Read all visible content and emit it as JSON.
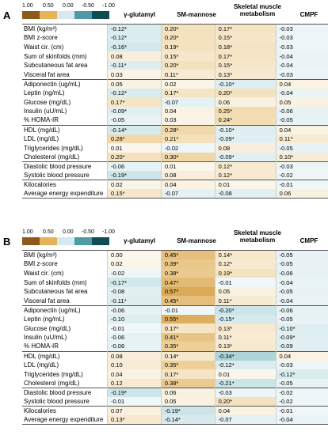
{
  "legend": {
    "ticks": [
      "1.00",
      "0.50",
      "0.00",
      "-0.50",
      "-1.00"
    ],
    "colors": [
      "#8c5a1c",
      "#e8b25a",
      "#d5eaf0",
      "#4e9aa6",
      "#0d4d53"
    ]
  },
  "columns": [
    "γ-glutamyl",
    "SM-mannose",
    "Skeletal muscle metabolism",
    "CMPF"
  ],
  "panels": [
    {
      "label": "A",
      "rows": [
        {
          "label": "BMI (kg/m²)",
          "values": [
            "-0.12*",
            "0.20*",
            "0.17*",
            "-0.03"
          ],
          "r": [
            -0.12,
            0.2,
            0.17,
            -0.03
          ],
          "group": 1
        },
        {
          "label": "BMI z-score",
          "values": [
            "-0.12*",
            "0.20*",
            "0.15*",
            "-0.03"
          ],
          "r": [
            -0.12,
            0.2,
            0.15,
            -0.03
          ],
          "group": 1
        },
        {
          "label": "Waist cir. (cm)",
          "values": [
            "-0.16*",
            "0.19*",
            "0.18*",
            "-0.03"
          ],
          "r": [
            -0.16,
            0.19,
            0.18,
            -0.03
          ],
          "group": 1
        },
        {
          "label": "Sum of skinfolds (mm)",
          "values": [
            "0.08",
            "0.15*",
            "0.17*",
            "-0.04"
          ],
          "r": [
            0.08,
            0.15,
            0.17,
            -0.04
          ],
          "group": 1
        },
        {
          "label": "Subcutaneous fat area",
          "values": [
            "-0.11*",
            "0.20*",
            "0.15*",
            "-0.04"
          ],
          "r": [
            -0.11,
            0.2,
            0.15,
            -0.04
          ],
          "group": 1
        },
        {
          "label": "Visceral fat area",
          "values": [
            "0.03",
            "0.11*",
            "0.13*",
            "-0.03"
          ],
          "r": [
            0.03,
            0.11,
            0.13,
            -0.03
          ],
          "group": 1
        },
        {
          "label": "Adiponectin (ug/mL)",
          "values": [
            "0.05",
            "0.02",
            "-0.10*",
            "0.04"
          ],
          "r": [
            0.05,
            0.02,
            -0.1,
            0.04
          ],
          "group": 2
        },
        {
          "label": "Leptin (ng/mL)",
          "values": [
            "-0.12*",
            "0.17*",
            "0.20*",
            "-0.04"
          ],
          "r": [
            -0.12,
            0.17,
            0.2,
            -0.04
          ],
          "group": 2
        },
        {
          "label": "Glucose (mg/dL)",
          "values": [
            "0.17*",
            "-0.07",
            "0.06",
            "0.05"
          ],
          "r": [
            0.17,
            -0.07,
            0.06,
            0.05
          ],
          "group": 2
        },
        {
          "label": "Insulin (uU/mL)",
          "values": [
            "-0.09*",
            "0.04",
            "0.25*",
            "-0.06"
          ],
          "r": [
            -0.09,
            0.04,
            0.25,
            -0.06
          ],
          "group": 2
        },
        {
          "label": "% HOMA-IR",
          "values": [
            "-0.05",
            "0.03",
            "0.24*",
            "-0.05"
          ],
          "r": [
            -0.05,
            0.03,
            0.24,
            -0.05
          ],
          "group": 2
        },
        {
          "label": "HDL (mg/dL)",
          "values": [
            "-0.14*",
            "0.28*",
            "-0.10*",
            "0.04"
          ],
          "r": [
            -0.14,
            0.28,
            -0.1,
            0.04
          ],
          "group": 3
        },
        {
          "label": "LDL (mg/dL)",
          "values": [
            "0.28*",
            "0.21*",
            "-0.09*",
            "0.11*"
          ],
          "r": [
            0.28,
            0.21,
            -0.09,
            0.11
          ],
          "group": 3
        },
        {
          "label": "Triglycerides (mg/dL)",
          "values": [
            "0.01",
            "-0.02",
            "0.08",
            "-0.05"
          ],
          "r": [
            0.01,
            -0.02,
            0.08,
            -0.05
          ],
          "group": 3
        },
        {
          "label": "Cholesterol (mg/dL)",
          "values": [
            "0.20*",
            "0.30*",
            "-0.09*",
            "0.10*"
          ],
          "r": [
            0.2,
            0.3,
            -0.09,
            0.1
          ],
          "group": 3
        },
        {
          "label": "Diastolic blood pressure",
          "values": [
            "-0.06",
            "0.01",
            "0.12*",
            "-0.03"
          ],
          "r": [
            -0.06,
            0.01,
            0.12,
            -0.03
          ],
          "group": 4
        },
        {
          "label": "Systolic blood pressure",
          "values": [
            "-0.19*",
            "0.08",
            "0.12*",
            "-0.02"
          ],
          "r": [
            -0.19,
            0.08,
            0.12,
            -0.02
          ],
          "group": 4
        },
        {
          "label": "Kilocalories",
          "values": [
            "0.02",
            "0.04",
            "0.01",
            "-0.01"
          ],
          "r": [
            0.02,
            0.04,
            0.01,
            -0.01
          ],
          "group": 5
        },
        {
          "label": "Average energy expenditure",
          "values": [
            "0.15*",
            "-0.07",
            "-0.08",
            "0.06"
          ],
          "r": [
            0.15,
            -0.07,
            -0.08,
            0.06
          ],
          "group": 5
        }
      ]
    },
    {
      "label": "B",
      "rows": [
        {
          "label": "BMI (kg/m²)",
          "values": [
            "0.00",
            "0.45*",
            "0.14*",
            "-0.05"
          ],
          "r": [
            0.0,
            0.45,
            0.14,
            -0.05
          ],
          "group": 1
        },
        {
          "label": "BMI z-score",
          "values": [
            "0.02",
            "0.39*",
            "0.12*",
            "-0.05"
          ],
          "r": [
            0.02,
            0.39,
            0.12,
            -0.05
          ],
          "group": 1
        },
        {
          "label": "Waist cir. (cm)",
          "values": [
            "-0.02",
            "0.38*",
            "0.19*",
            "-0.06"
          ],
          "r": [
            -0.02,
            0.38,
            0.19,
            -0.06
          ],
          "group": 1
        },
        {
          "label": "Sum of skinfolds (mm)",
          "values": [
            "-0.17*",
            "0.47*",
            "-0.01",
            "-0.04"
          ],
          "r": [
            -0.17,
            0.47,
            -0.01,
            -0.04
          ],
          "group": 1
        },
        {
          "label": "Subcutaneous fat area",
          "values": [
            "-0.08",
            "0.57*",
            "0.05",
            "-0.05"
          ],
          "r": [
            -0.08,
            0.57,
            0.05,
            -0.05
          ],
          "group": 1
        },
        {
          "label": "Visceral fat area",
          "values": [
            "-0.11*",
            "0.45*",
            "0.11*",
            "-0.04"
          ],
          "r": [
            -0.11,
            0.45,
            0.11,
            -0.04
          ],
          "group": 1
        },
        {
          "label": "Adiponectin (ug/mL)",
          "values": [
            "-0.06",
            "-0.01",
            "-0.20*",
            "-0.06"
          ],
          "r": [
            -0.06,
            -0.01,
            -0.2,
            -0.06
          ],
          "group": 2
        },
        {
          "label": "Leptin (ng/mL)",
          "values": [
            "-0.10",
            "0.55*",
            "-0.15*",
            "-0.05"
          ],
          "r": [
            -0.1,
            0.55,
            -0.15,
            -0.05
          ],
          "group": 2
        },
        {
          "label": "Glucose (mg/dL)",
          "values": [
            "-0.01",
            "0.17*",
            "0.13*",
            "-0.10*"
          ],
          "r": [
            -0.01,
            0.17,
            0.13,
            -0.1
          ],
          "group": 2
        },
        {
          "label": "Insulin (uU/mL)",
          "values": [
            "-0.06",
            "0.41*",
            "0.11*",
            "-0.09*"
          ],
          "r": [
            -0.06,
            0.41,
            0.11,
            -0.09
          ],
          "group": 2
        },
        {
          "label": "% HOMA-IR",
          "values": [
            "-0.06",
            "0.35*",
            "0.13*",
            "-0.09"
          ],
          "r": [
            -0.06,
            0.35,
            0.13,
            -0.09
          ],
          "group": 2
        },
        {
          "label": "HDL (mg/dL)",
          "values": [
            "0.08",
            "0.14*",
            "-0.34*",
            "0.04"
          ],
          "r": [
            0.08,
            0.14,
            -0.34,
            0.04
          ],
          "group": 3
        },
        {
          "label": "LDL (mg/dL)",
          "values": [
            "0.10",
            "0.35*",
            "-0.12*",
            "-0.03"
          ],
          "r": [
            0.1,
            0.35,
            -0.12,
            -0.03
          ],
          "group": 3
        },
        {
          "label": "Triglycerides (mg/dL)",
          "values": [
            "0.04",
            "0.17*",
            "0.01",
            "-0.12*"
          ],
          "r": [
            0.04,
            0.17,
            0.01,
            -0.12
          ],
          "group": 3
        },
        {
          "label": "Cholesterol (mg/dL)",
          "values": [
            "0.12",
            "0.38*",
            "-0.21*",
            "-0.05"
          ],
          "r": [
            0.12,
            0.38,
            -0.21,
            -0.05
          ],
          "group": 3
        },
        {
          "label": "Diastolic blood pressure",
          "values": [
            "-0.19*",
            "0.06",
            "-0.03",
            "-0.02"
          ],
          "r": [
            -0.19,
            0.06,
            -0.03,
            -0.02
          ],
          "group": 4
        },
        {
          "label": "Systolic blood pressure",
          "values": [
            "-0.01",
            "0.05",
            "0.20*",
            "-0.02"
          ],
          "r": [
            -0.01,
            0.05,
            0.2,
            -0.02
          ],
          "group": 4
        },
        {
          "label": "Kilocalories",
          "values": [
            "0.07",
            "-0.19*",
            "0.04",
            "-0.01"
          ],
          "r": [
            0.07,
            -0.19,
            0.04,
            -0.01
          ],
          "group": 5
        },
        {
          "label": "Average energy expenditure",
          "values": [
            "0.13*",
            "-0.14*",
            "-0.07",
            "-0.04"
          ],
          "r": [
            0.13,
            -0.14,
            -0.07,
            -0.04
          ],
          "group": 5
        }
      ]
    }
  ]
}
